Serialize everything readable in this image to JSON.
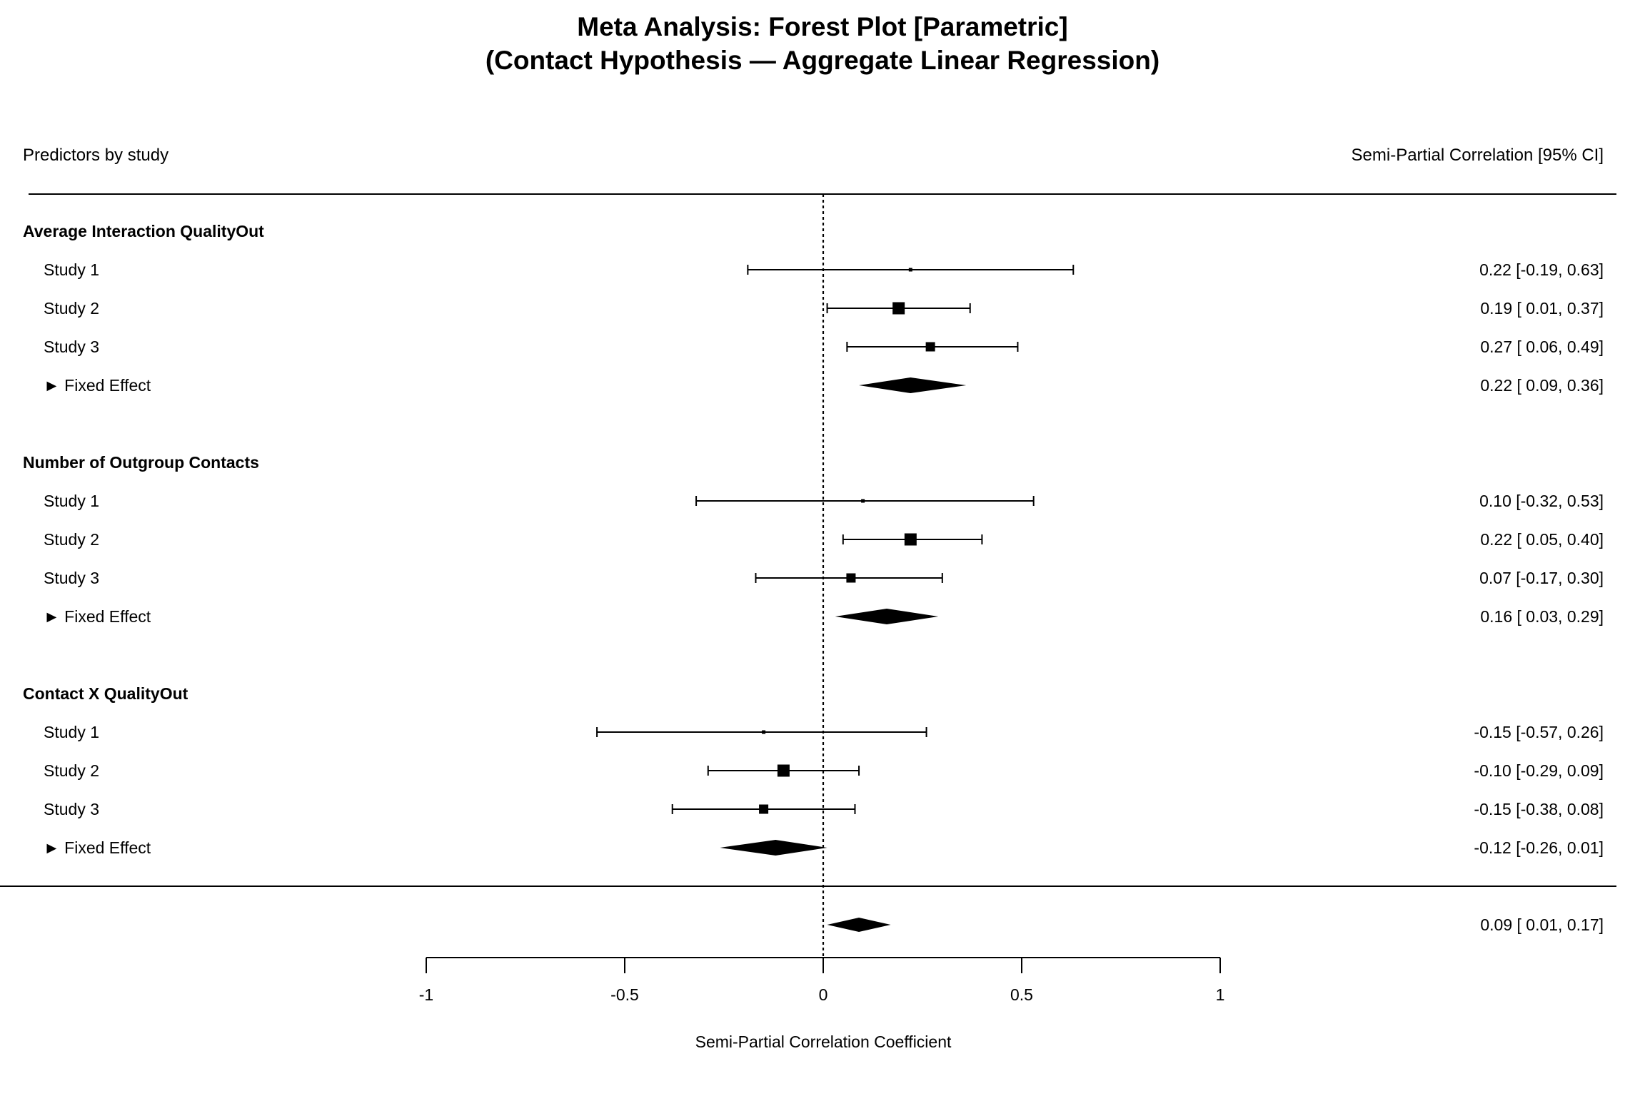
{
  "chart_data": {
    "type": "forest",
    "title_lines": [
      "Meta Analysis: Forest Plot [Parametric]",
      "(Contact Hypothesis — Aggregate Linear Regression)"
    ],
    "left_header": "Predictors by study",
    "right_header": "Semi-Partial Correlation [95% CI]",
    "xlabel": "Semi-Partial Correlation Coefficient",
    "xlim": [
      -1,
      1
    ],
    "xticks": [
      {
        "value": -1,
        "label": "-1"
      },
      {
        "value": -0.5,
        "label": "-0.5"
      },
      {
        "value": 0,
        "label": "0"
      },
      {
        "value": 0.5,
        "label": "0.5"
      },
      {
        "value": 1,
        "label": "1"
      }
    ],
    "reference_line": 0,
    "groups": [
      {
        "name": "Average Interaction QualityOut",
        "studies": [
          {
            "label": "Study 1",
            "est": 0.22,
            "lo": -0.19,
            "hi": 0.63,
            "ci_text": "0.22 [-0.19, 0.63]",
            "weight": "small"
          },
          {
            "label": "Study 2",
            "est": 0.19,
            "lo": 0.01,
            "hi": 0.37,
            "ci_text": "0.19 [ 0.01, 0.37]",
            "weight": "large"
          },
          {
            "label": "Study 3",
            "est": 0.27,
            "lo": 0.06,
            "hi": 0.49,
            "ci_text": "0.27 [ 0.06, 0.49]",
            "weight": "medium"
          }
        ],
        "fixed": {
          "label": "► Fixed Effect",
          "est": 0.22,
          "lo": 0.09,
          "hi": 0.36,
          "ci_text": "0.22 [ 0.09, 0.36]"
        }
      },
      {
        "name": "Number of Outgroup Contacts",
        "studies": [
          {
            "label": "Study 1",
            "est": 0.1,
            "lo": -0.32,
            "hi": 0.53,
            "ci_text": "0.10 [-0.32, 0.53]",
            "weight": "small"
          },
          {
            "label": "Study 2",
            "est": 0.22,
            "lo": 0.05,
            "hi": 0.4,
            "ci_text": "0.22 [ 0.05, 0.40]",
            "weight": "large"
          },
          {
            "label": "Study 3",
            "est": 0.07,
            "lo": -0.17,
            "hi": 0.3,
            "ci_text": "0.07 [-0.17, 0.30]",
            "weight": "medium"
          }
        ],
        "fixed": {
          "label": "► Fixed Effect",
          "est": 0.16,
          "lo": 0.03,
          "hi": 0.29,
          "ci_text": "0.16 [ 0.03, 0.29]"
        }
      },
      {
        "name": "Contact X QualityOut",
        "studies": [
          {
            "label": "Study 1",
            "est": -0.15,
            "lo": -0.57,
            "hi": 0.26,
            "ci_text": "-0.15 [-0.57, 0.26]",
            "weight": "small"
          },
          {
            "label": "Study 2",
            "est": -0.1,
            "lo": -0.29,
            "hi": 0.09,
            "ci_text": "-0.10 [-0.29, 0.09]",
            "weight": "large"
          },
          {
            "label": "Study 3",
            "est": -0.15,
            "lo": -0.38,
            "hi": 0.08,
            "ci_text": "-0.15 [-0.38, 0.08]",
            "weight": "medium"
          }
        ],
        "fixed": {
          "label": "► Fixed Effect",
          "est": -0.12,
          "lo": -0.26,
          "hi": 0.01,
          "ci_text": "-0.12 [-0.26, 0.01]"
        }
      }
    ],
    "overall": {
      "est": 0.09,
      "lo": 0.01,
      "hi": 0.17,
      "ci_text": "0.09 [ 0.01, 0.17]"
    }
  }
}
